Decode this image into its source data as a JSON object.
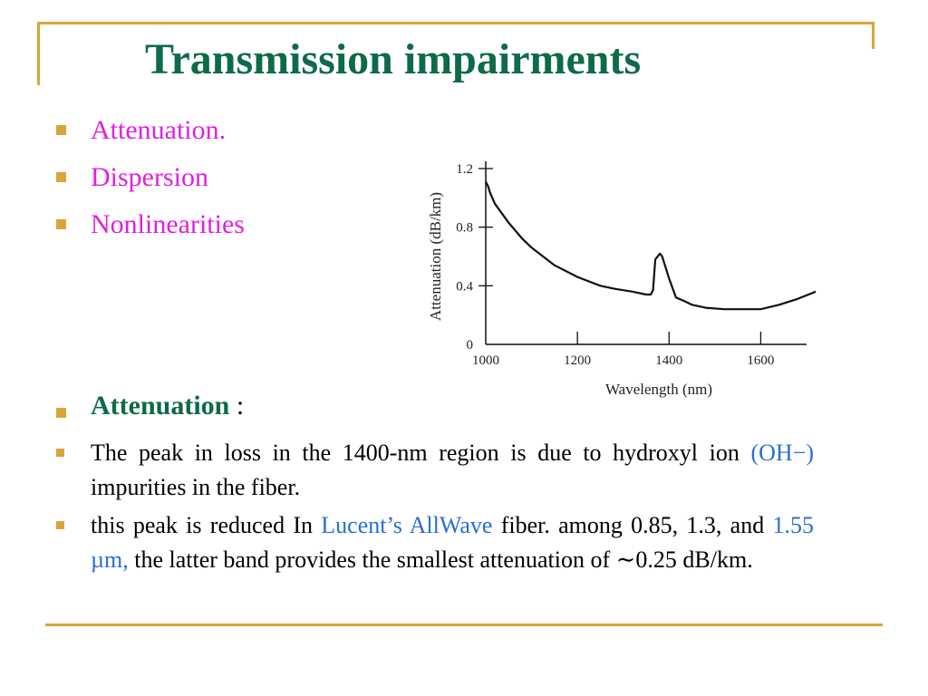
{
  "slide": {
    "title": "Transmission impairments",
    "colors": {
      "title": "#0d6b46",
      "bullets": "#e020e0",
      "accent": "#d9a53a",
      "highlight": "#2a6fd1"
    }
  },
  "bullets": [
    "Attenuation.",
    "Dispersion",
    "Nonlinearities"
  ],
  "attenuation_heading": {
    "word": "Attenuation",
    "suffix": " :"
  },
  "points": [
    {
      "part1": "The peak in loss in the 1400-nm region is due to hydroxyl ion ",
      "hl1": "(OH−)",
      "part2": " impurities in the fiber."
    },
    {
      "part1": "this peak is reduced In ",
      "hl1": "Lucent’s AllWave",
      "part2": " fiber. among 0.85, 1.3, and ",
      "hl2": "1.55 µm,",
      "part3": " the latter band provides the smallest attenuation of ∼0.25 dB/km."
    }
  ],
  "chart_data": {
    "type": "line",
    "xlabel": "Wavelength (nm)",
    "ylabel": "Attenuation (dB/km)",
    "xlim": [
      1000,
      1700
    ],
    "ylim": [
      0,
      1.2
    ],
    "x_ticks": [
      1000,
      1200,
      1400,
      1600
    ],
    "y_ticks": [
      0,
      0.4,
      0.8,
      1.2
    ],
    "x_tick_labels": [
      "1000",
      "1200",
      "1400",
      "1600"
    ],
    "y_tick_labels": [
      "0",
      "0.4",
      "0.8",
      "1.2"
    ],
    "grid": false,
    "series": [
      {
        "x": [
          1000,
          1005,
          1010,
          1020,
          1050,
          1080,
          1100,
          1150,
          1200,
          1250,
          1280,
          1320,
          1350,
          1360,
          1365,
          1370,
          1380,
          1385,
          1390,
          1400,
          1415,
          1430,
          1450,
          1480,
          1520,
          1560,
          1600,
          1640,
          1680,
          1720
        ],
        "y": [
          1.11,
          1.08,
          1.03,
          0.96,
          0.83,
          0.72,
          0.66,
          0.54,
          0.46,
          0.4,
          0.38,
          0.36,
          0.34,
          0.34,
          0.37,
          0.58,
          0.62,
          0.6,
          0.55,
          0.45,
          0.32,
          0.3,
          0.27,
          0.25,
          0.24,
          0.24,
          0.24,
          0.27,
          0.31,
          0.36
        ]
      }
    ]
  }
}
